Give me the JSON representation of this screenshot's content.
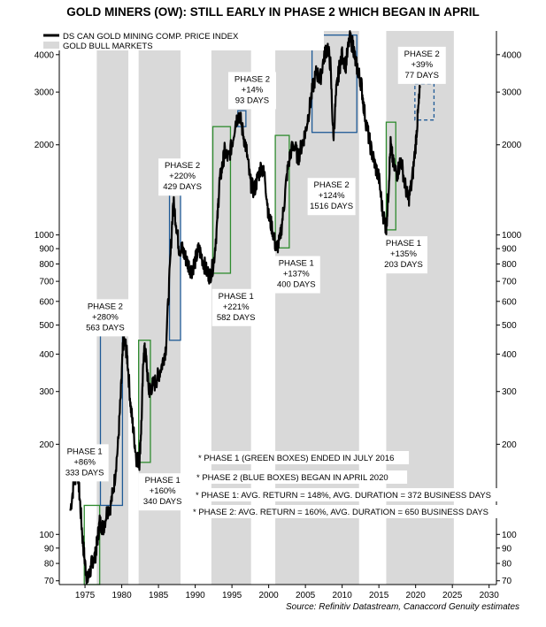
{
  "chart_data": {
    "type": "line",
    "title": "GOLD MINERS (OW): STILL EARLY IN PHASE 2 WHICH BEGAN IN APRIL",
    "source": "Source: Refinitiv Datastream, Canaccord Genuity estimates",
    "y_scale": "log",
    "ylim": [
      68,
      4800
    ],
    "xlim": [
      1971.5,
      2031
    ],
    "y_ticks": [
      70,
      80,
      90,
      100,
      200,
      300,
      400,
      500,
      600,
      700,
      800,
      900,
      1000,
      2000,
      3000,
      4000
    ],
    "x_ticks": [
      1975,
      1980,
      1985,
      1990,
      1995,
      2000,
      2005,
      2010,
      2015,
      2020,
      2025,
      2030
    ],
    "grid": false,
    "legend_position": "top-left",
    "legend": [
      {
        "label": "DS CAN GOLD MINING COMP. PRICE INDEX",
        "type": "line",
        "color": "#000000"
      },
      {
        "label": "GOLD BULL MARKETS",
        "type": "band",
        "color": "#d9d9d9"
      }
    ],
    "series": [
      {
        "name": "DS CAN GOLD MINING COMP. PRICE INDEX",
        "color": "#000000",
        "x": [
          1973.0,
          1973.5,
          1974.0,
          1974.3,
          1974.7,
          1975.0,
          1975.3,
          1975.7,
          1976.0,
          1976.4,
          1976.7,
          1977.0,
          1977.5,
          1978.0,
          1978.5,
          1979.0,
          1979.5,
          1979.9,
          1980.2,
          1980.5,
          1980.8,
          1981.2,
          1981.6,
          1982.0,
          1982.4,
          1982.7,
          1983.0,
          1983.3,
          1983.7,
          1984.0,
          1984.5,
          1985.0,
          1985.5,
          1986.0,
          1986.5,
          1987.0,
          1987.4,
          1987.8,
          1988.2,
          1988.6,
          1989.0,
          1989.5,
          1990.0,
          1990.5,
          1991.0,
          1991.5,
          1992.0,
          1992.5,
          1993.0,
          1993.3,
          1993.7,
          1994.0,
          1994.5,
          1995.0,
          1995.5,
          1996.0,
          1996.5,
          1997.0,
          1997.5,
          1998.0,
          1998.5,
          1999.0,
          1999.5,
          2000.0,
          2000.5,
          2001.0,
          2001.5,
          2002.0,
          2002.5,
          2003.0,
          2003.5,
          2004.0,
          2004.5,
          2005.0,
          2005.5,
          2006.0,
          2006.5,
          2007.0,
          2007.5,
          2008.0,
          2008.4,
          2008.8,
          2009.2,
          2009.6,
          2010.0,
          2010.5,
          2011.0,
          2011.5,
          2011.8,
          2012.2,
          2012.6,
          2013.0,
          2013.5,
          2014.0,
          2014.5,
          2015.0,
          2015.5,
          2016.0,
          2016.3,
          2016.6,
          2017.0,
          2017.5,
          2018.0,
          2018.5,
          2019.0,
          2019.5,
          2020.0,
          2020.3,
          2020.6
        ],
        "y": [
          120,
          150,
          165,
          130,
          95,
          80,
          70,
          75,
          82,
          85,
          96,
          110,
          105,
          120,
          125,
          150,
          200,
          300,
          440,
          430,
          380,
          270,
          220,
          180,
          175,
          240,
          420,
          390,
          300,
          310,
          320,
          340,
          370,
          420,
          720,
          1300,
          1100,
          900,
          900,
          850,
          800,
          760,
          820,
          900,
          830,
          760,
          730,
          800,
          1100,
          1500,
          1700,
          1900,
          1800,
          2000,
          2400,
          2550,
          2200,
          1900,
          1500,
          1400,
          1550,
          1700,
          1550,
          1150,
          1050,
          900,
          950,
          1200,
          1600,
          1900,
          2000,
          1800,
          2000,
          2200,
          2600,
          3100,
          3500,
          3300,
          3900,
          4300,
          3700,
          2100,
          3000,
          3600,
          4000,
          3700,
          4500,
          4300,
          3800,
          3500,
          3200,
          2600,
          2200,
          1900,
          1700,
          1550,
          1200,
          1050,
          1400,
          2000,
          1700,
          1600,
          1800,
          1500,
          1300,
          1500,
          2000,
          2500,
          3100
        ]
      }
    ],
    "bull_markets": [
      [
        1976.6,
        1980.9
      ],
      [
        1982.3,
        1988.0
      ],
      [
        1992.2,
        1997.6
      ],
      [
        2000.9,
        2012.3
      ],
      [
        2016.0,
        2025.2
      ]
    ],
    "phase_boxes": [
      {
        "phase": 1,
        "x0": 1974.9,
        "x1": 1977.0,
        "y0": 68,
        "y1": 125
      },
      {
        "phase": 2,
        "x0": 1977.1,
        "x1": 1980.1,
        "y0": 125,
        "y1": 465
      },
      {
        "phase": 1,
        "x0": 1982.3,
        "x1": 1983.9,
        "y0": 174,
        "y1": 445
      },
      {
        "phase": 2,
        "x0": 1986.5,
        "x1": 1988.0,
        "y0": 445,
        "y1": 1410
      },
      {
        "phase": 1,
        "x0": 1992.4,
        "x1": 1994.8,
        "y0": 745,
        "y1": 2300
      },
      {
        "phase": 2,
        "x0": 1995.8,
        "x1": 1996.9,
        "y0": 2300,
        "y1": 2600
      },
      {
        "phase": 1,
        "x0": 2000.9,
        "x1": 2002.8,
        "y0": 905,
        "y1": 2150
      },
      {
        "phase": 2,
        "x0": 2005.9,
        "x1": 2012.0,
        "y0": 2200,
        "y1": 4650
      },
      {
        "phase": 1,
        "x0": 2016.0,
        "x1": 2017.3,
        "y0": 1040,
        "y1": 2380
      },
      {
        "phase": 2,
        "x0": 2019.9,
        "x1": 2022.5,
        "y0": 2420,
        "y1": 3200,
        "dashed": true
      }
    ],
    "annotations": [
      {
        "lines": [
          "PHASE 1",
          "+86%",
          "333 DAYS"
        ],
        "x": 1971.7,
        "y": 200
      },
      {
        "lines": [
          "PHASE 2",
          "+280%",
          "563 DAYS"
        ],
        "x": 1974.5,
        "y": 610
      },
      {
        "lines": [
          "PHASE 1",
          "+160%",
          "340 DAYS"
        ],
        "x": 1982.3,
        "y": 160
      },
      {
        "lines": [
          "PHASE 2",
          "+220%",
          "429 DAYS"
        ],
        "x": 1985.0,
        "y": 1800
      },
      {
        "lines": [
          "PHASE 1",
          "+221%",
          "582 DAYS"
        ],
        "x": 1992.3,
        "y": 660
      },
      {
        "lines": [
          "PHASE 2",
          "+14%",
          "93 DAYS"
        ],
        "x": 1994.5,
        "y": 3500
      },
      {
        "lines": [
          "PHASE 1",
          "+137%",
          "400 DAYS"
        ],
        "x": 2000.5,
        "y": 850
      },
      {
        "lines": [
          "PHASE 2",
          "+124%",
          "1516 DAYS"
        ],
        "x": 2005.3,
        "y": 1550
      },
      {
        "lines": [
          "PHASE 1",
          "+135%",
          "203 DAYS"
        ],
        "x": 2015.1,
        "y": 990
      },
      {
        "lines": [
          "PHASE 2",
          "+39%",
          "77 DAYS"
        ],
        "x": 2017.6,
        "y": 4250
      }
    ],
    "notes": [
      "* PHASE 1 (GREEN BOXES) ENDED IN JULY 2016",
      "* PHASE 2 (BLUE BOXES) BEGAN IN APRIL 2020",
      "* PHASE 1: AVG. RETURN = 148%, AVG. DURATION = 372 BUSINESS DAYS",
      "* PHASE 2: AVG. RETURN = 160%, AVG. DURATION = 650 BUSINESS DAYS"
    ],
    "colors": {
      "phase1": "#2e8b2e",
      "phase2": "#1f5a96",
      "band": "#d9d9d9",
      "line": "#000000"
    }
  }
}
